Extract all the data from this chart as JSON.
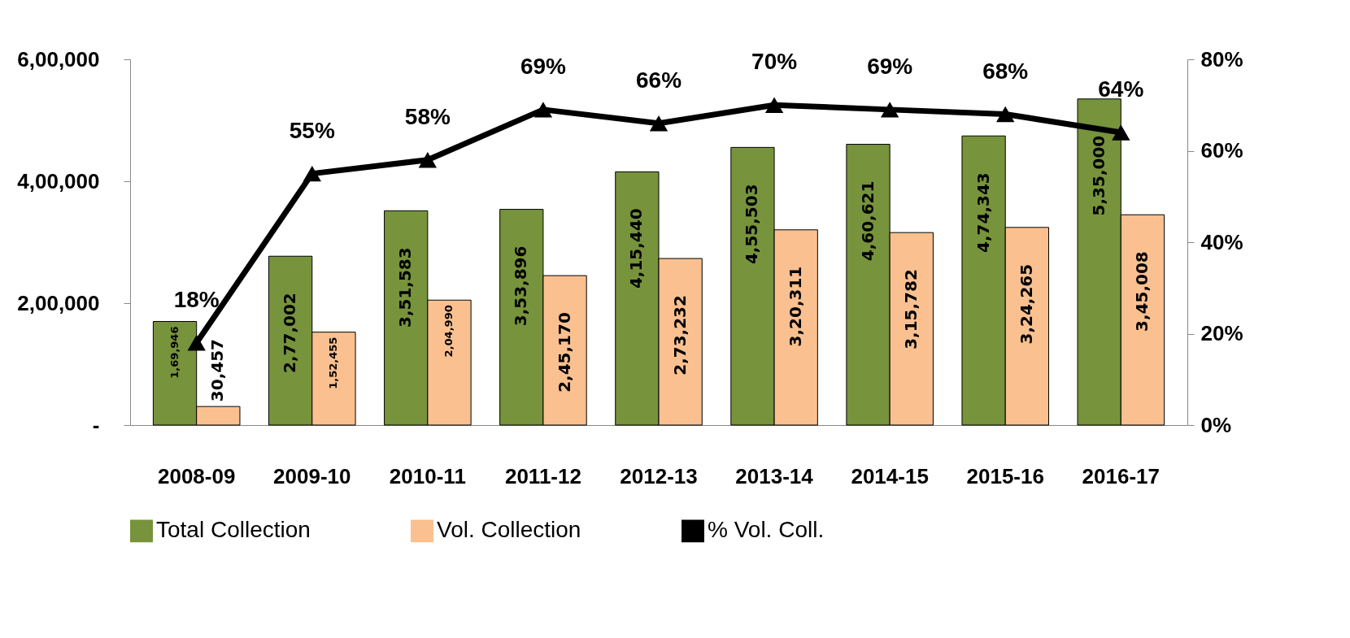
{
  "chart_data": {
    "type": "bar",
    "categories": [
      "2008-09",
      "2009-10",
      "2010-11",
      "2011-12",
      "2012-13",
      "2013-14",
      "2014-15",
      "2015-16",
      "2016-17"
    ],
    "series": [
      {
        "name": "Total Collection",
        "color": "#77933c",
        "values": [
          169946,
          277002,
          351583,
          353896,
          415440,
          455503,
          460621,
          474343,
          535000
        ],
        "value_labels": [
          "1,69,946",
          "2,77,002",
          "3,51,583",
          "3,53,896",
          "4,15,440",
          "4,55,503",
          "4,60,621",
          "4,74,343",
          "5,35,000"
        ]
      },
      {
        "name": "Vol. Collection",
        "color": "#fac090",
        "values": [
          30457,
          152455,
          204990,
          245170,
          273232,
          320311,
          315782,
          324265,
          345008
        ],
        "value_labels": [
          "30,457",
          "1,52,455",
          "2,04,990",
          "2,45,170",
          "2,73,232",
          "3,20,311",
          "3,15,782",
          "3,24,265",
          "3,45,008"
        ]
      },
      {
        "name": "% Vol. Coll.",
        "type": "line",
        "axis": "y2",
        "color": "#000000",
        "marker": "triangle",
        "values": [
          18,
          55,
          58,
          69,
          66,
          70,
          69,
          68,
          64
        ],
        "value_labels": [
          "18%",
          "55%",
          "58%",
          "69%",
          "66%",
          "70%",
          "69%",
          "68%",
          "64%"
        ]
      }
    ],
    "ylim": [
      0,
      600000
    ],
    "yticks": [
      {
        "value": 0,
        "label": "-"
      },
      {
        "value": 200000,
        "label": "2,00,000"
      },
      {
        "value": 400000,
        "label": "4,00,000"
      },
      {
        "value": 600000,
        "label": "6,00,000"
      }
    ],
    "y2lim": [
      0,
      80
    ],
    "y2ticks": [
      {
        "value": 0,
        "label": "0%"
      },
      {
        "value": 20,
        "label": "20%"
      },
      {
        "value": 40,
        "label": "40%"
      },
      {
        "value": 60,
        "label": "60%"
      },
      {
        "value": 80,
        "label": "80%"
      }
    ],
    "grid": false,
    "legend": "bottom"
  }
}
